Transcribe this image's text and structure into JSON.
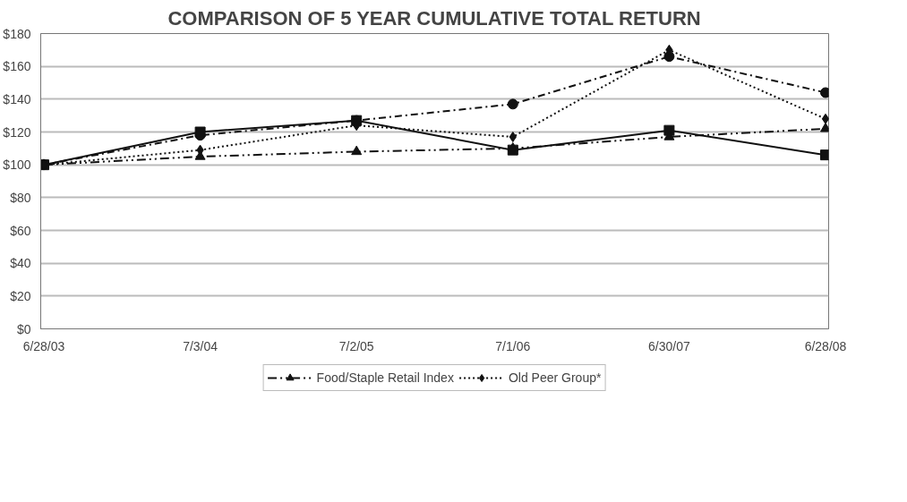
{
  "chart_data": {
    "type": "line",
    "title": "COMPARISON OF 5 YEAR CUMULATIVE TOTAL RETURN",
    "categories": [
      "6/28/03",
      "7/3/04",
      "7/2/05",
      "7/1/06",
      "6/30/07",
      "6/28/08"
    ],
    "series": [
      {
        "color": "#111111",
        "marker": "square",
        "line_style": "solid",
        "values": [
          100,
          120,
          127,
          109,
          121,
          106
        ]
      },
      {
        "color": "#111111",
        "marker": "circle",
        "line_style": "dashdot",
        "values": [
          100,
          118,
          127,
          137,
          166,
          144
        ]
      },
      {
        "name": "Food/Staple Retail Index",
        "color": "#111111",
        "marker": "triangle",
        "line_style": "dashed",
        "values": [
          100,
          105,
          108,
          110,
          117,
          122
        ]
      },
      {
        "name": "Old Peer Group*",
        "color": "#111111",
        "marker": "diamond",
        "line_style": "dotted",
        "values": [
          100,
          109,
          124,
          117,
          170,
          128
        ]
      }
    ],
    "ylim": [
      0,
      180
    ],
    "yticks": [
      {
        "value": 0,
        "label": "$0"
      },
      {
        "value": 20,
        "label": "$20"
      },
      {
        "value": 40,
        "label": "$40"
      },
      {
        "value": 60,
        "label": "$60"
      },
      {
        "value": 80,
        "label": "$80"
      },
      {
        "value": 100,
        "label": "$100"
      },
      {
        "value": 120,
        "label": "$120"
      },
      {
        "value": 140,
        "label": "$140"
      },
      {
        "value": 160,
        "label": "$160"
      },
      {
        "value": 180,
        "label": "$180"
      }
    ],
    "grid": "y",
    "legend": "bottom"
  }
}
